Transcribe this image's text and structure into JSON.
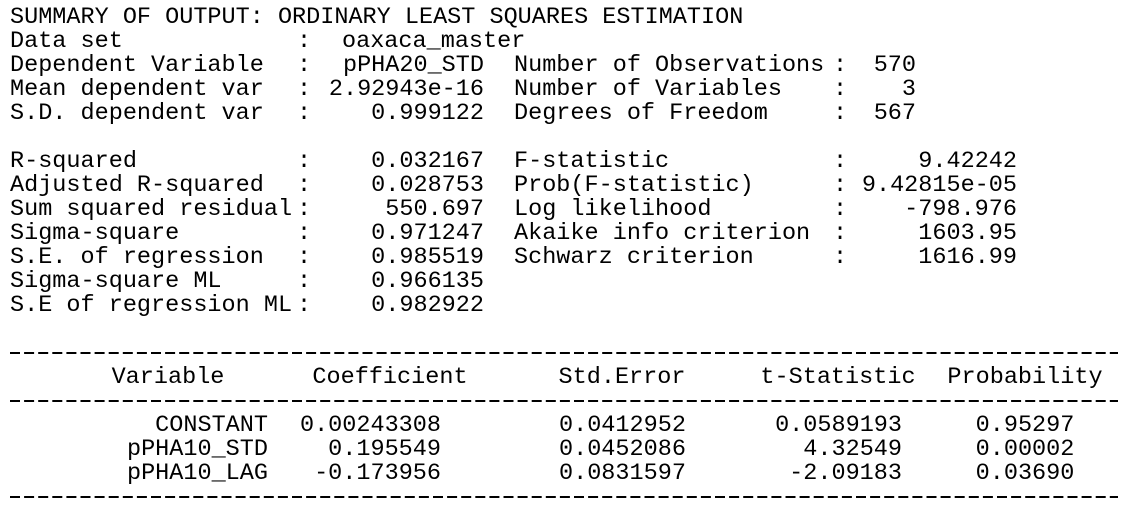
{
  "title": "SUMMARY OF OUTPUT: ORDINARY LEAST SQUARES ESTIMATION",
  "separator": ":",
  "summary": [
    {
      "label": "Data set",
      "value": "oaxaca_master"
    },
    {
      "label": "Dependent Variable",
      "value": "pPHA20_STD"
    },
    {
      "label": "Mean dependent var",
      "value": "2.92943e-16"
    },
    {
      "label": "S.D. dependent var",
      "value": "0.999122"
    }
  ],
  "summary_right": [
    {
      "label": "Number of Observations",
      "value": "570"
    },
    {
      "label": "Number of Variables",
      "value": "3"
    },
    {
      "label": "Degrees of Freedom",
      "value": "567"
    }
  ],
  "stats": [
    {
      "label": "R-squared",
      "value": "0.032167"
    },
    {
      "label": "Adjusted R-squared",
      "value": "0.028753"
    },
    {
      "label": "Sum squared residual",
      "value": "550.697"
    },
    {
      "label": "Sigma-square",
      "value": "0.971247"
    },
    {
      "label": "S.E. of regression",
      "value": "0.985519"
    },
    {
      "label": "Sigma-square ML",
      "value": "0.966135"
    },
    {
      "label": "S.E of regression ML",
      "value": "0.982922"
    }
  ],
  "stats_right": [
    {
      "label": "F-statistic",
      "value": "9.42242"
    },
    {
      "label": "Prob(F-statistic)",
      "value": "9.42815e-05"
    },
    {
      "label": "Log likelihood",
      "value": "-798.976"
    },
    {
      "label": "Akaike info criterion",
      "value": "1603.95"
    },
    {
      "label": "Schwarz criterion",
      "value": "1616.99"
    }
  ],
  "table": {
    "columns": [
      "Variable",
      "Coefficient",
      "Std.Error",
      "t-Statistic",
      "Probability"
    ],
    "rows": [
      [
        "CONSTANT",
        "0.00243308",
        "0.0412952",
        "0.0589193",
        "0.95297"
      ],
      [
        "pPHA10_STD",
        "0.195549",
        "0.0452086",
        "4.32549",
        "0.00002"
      ],
      [
        "pPHA10_LAG",
        "-0.173956",
        "0.0831597",
        "-2.09183",
        "0.03690"
      ]
    ]
  }
}
